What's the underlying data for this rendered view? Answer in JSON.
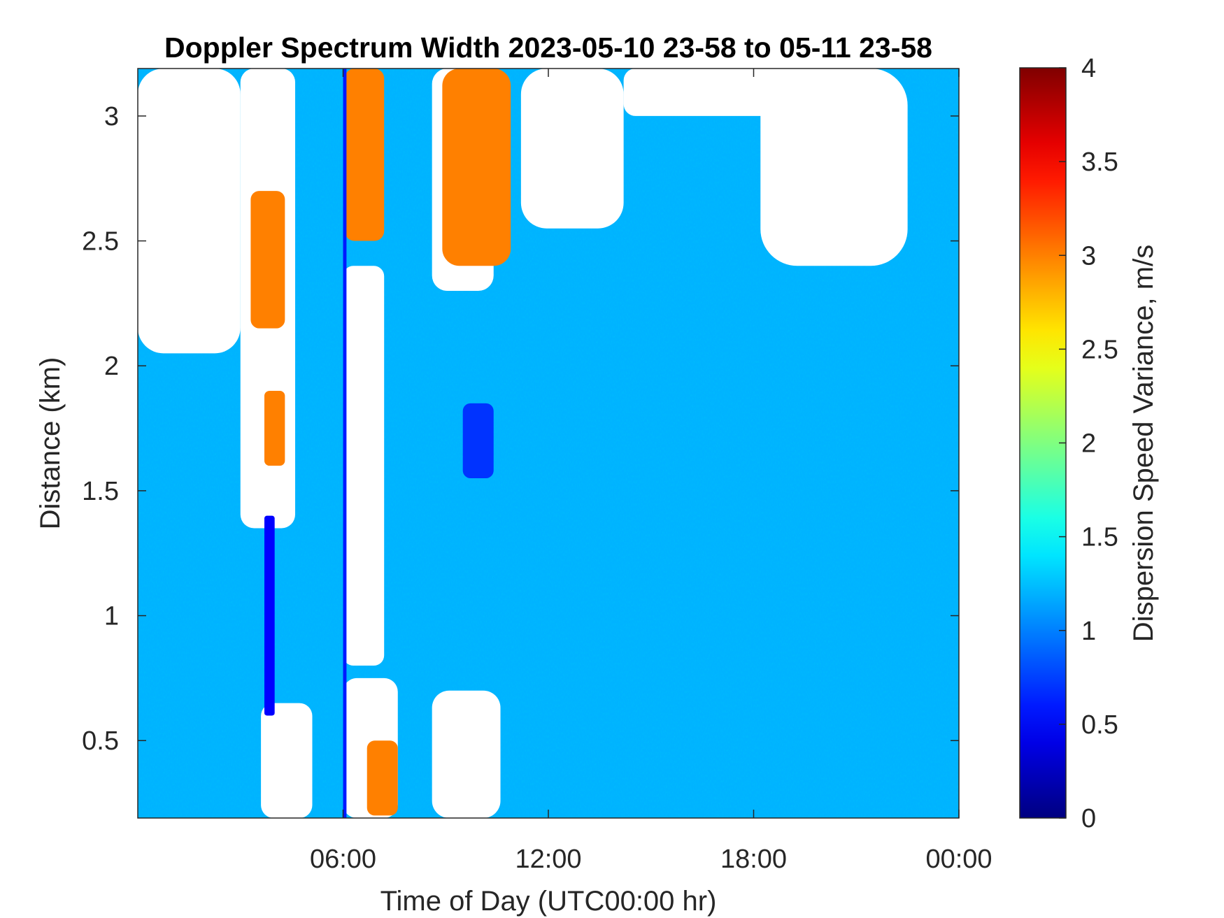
{
  "chart_data": {
    "type": "heatmap",
    "title": "Doppler Spectrum Width 2023-05-10 23-58 to 05-11 23-58",
    "xlabel": "Time of Day (UTC00:00 hr)",
    "ylabel": "Distance (km)",
    "colorbar_label": "Dispersion Speed Variance, m/s",
    "colormap": "jet",
    "xlim": [
      0,
      24
    ],
    "ylim": [
      0.19,
      3.19
    ],
    "clim": [
      0,
      4
    ],
    "x_ticks": [
      6,
      12,
      18,
      24
    ],
    "x_tick_labels": [
      "06:00",
      "12:00",
      "18:00",
      "00:00"
    ],
    "y_ticks": [
      0.5,
      1,
      1.5,
      2,
      2.5,
      3
    ],
    "y_tick_labels": [
      "0.5",
      "1",
      "1.5",
      "2",
      "2.5",
      "3"
    ],
    "colorbar_ticks": [
      0,
      0.5,
      1,
      1.5,
      2,
      2.5,
      3,
      3.5,
      4
    ],
    "colorbar_tick_labels": [
      "0",
      "0.5",
      "1",
      "1.5",
      "2",
      "2.5",
      "3",
      "3.5",
      "4"
    ],
    "background_value": 1.2,
    "regions": [
      {
        "kind": "no-data",
        "x": [
          0.0,
          3.0
        ],
        "y": [
          2.05,
          3.19
        ]
      },
      {
        "kind": "no-data",
        "x": [
          3.0,
          4.6
        ],
        "y": [
          1.35,
          3.19
        ]
      },
      {
        "kind": "no-data",
        "x": [
          3.6,
          5.1
        ],
        "y": [
          0.19,
          0.65
        ]
      },
      {
        "kind": "no-data",
        "x": [
          6.0,
          7.6
        ],
        "y": [
          0.19,
          0.75
        ]
      },
      {
        "kind": "no-data",
        "x": [
          6.0,
          7.2
        ],
        "y": [
          0.8,
          2.4
        ]
      },
      {
        "kind": "no-data",
        "x": [
          8.6,
          10.6
        ],
        "y": [
          0.19,
          0.7
        ]
      },
      {
        "kind": "no-data",
        "x": [
          8.6,
          10.4
        ],
        "y": [
          2.3,
          3.19
        ]
      },
      {
        "kind": "no-data",
        "x": [
          11.2,
          14.2
        ],
        "y": [
          2.55,
          3.19
        ]
      },
      {
        "kind": "no-data",
        "x": [
          14.2,
          19.5
        ],
        "y": [
          3.0,
          3.19
        ]
      },
      {
        "kind": "no-data",
        "x": [
          18.2,
          22.5
        ],
        "y": [
          2.4,
          3.19
        ]
      },
      {
        "kind": "high-width",
        "value": 3.0,
        "x": [
          3.3,
          4.3
        ],
        "y": [
          2.15,
          2.7
        ]
      },
      {
        "kind": "high-width",
        "value": 3.0,
        "x": [
          3.7,
          4.3
        ],
        "y": [
          1.6,
          1.9
        ]
      },
      {
        "kind": "high-width",
        "value": 3.0,
        "x": [
          6.05,
          7.2
        ],
        "y": [
          2.5,
          3.19
        ]
      },
      {
        "kind": "high-width",
        "value": 3.0,
        "x": [
          8.9,
          10.9
        ],
        "y": [
          2.4,
          3.19
        ]
      },
      {
        "kind": "high-width",
        "value": 3.0,
        "x": [
          6.7,
          7.6
        ],
        "y": [
          0.2,
          0.5
        ]
      },
      {
        "kind": "low-width",
        "value": 0.5,
        "x": [
          3.7,
          4.0
        ],
        "y": [
          0.6,
          1.4
        ]
      },
      {
        "kind": "low-width",
        "value": 0.7,
        "x": [
          9.5,
          10.4
        ],
        "y": [
          1.55,
          1.85
        ]
      },
      {
        "kind": "low-width",
        "value": 0.6,
        "x": [
          6.0,
          6.1
        ],
        "y": [
          0.19,
          3.19
        ]
      }
    ]
  }
}
